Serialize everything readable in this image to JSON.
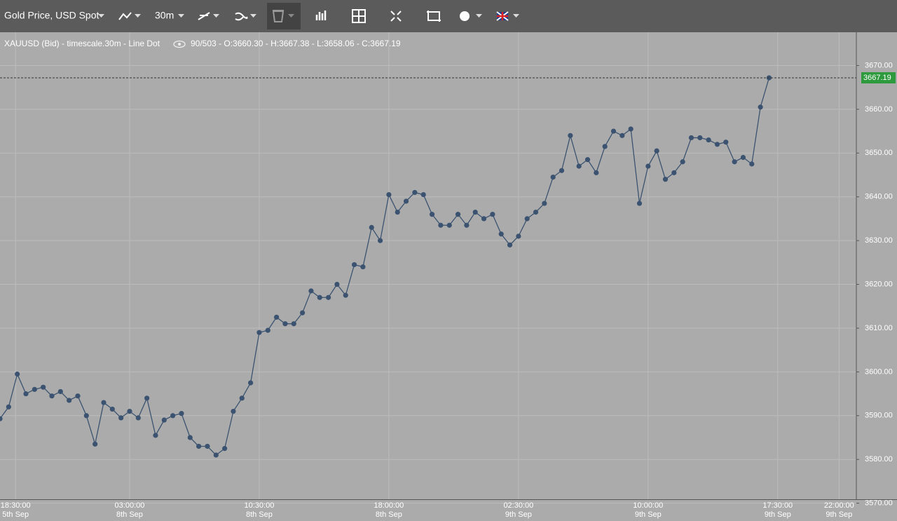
{
  "toolbar": {
    "instrument": "Gold Price, USD Spot",
    "timeframe": "30m"
  },
  "info": {
    "description": "XAUUSD (Bid) - timescale.30m - Line Dot",
    "stats": "90/503 - O:3660.30 - H:3667.38 - L:3658.06 - C:3667.19"
  },
  "chart_data": {
    "type": "line",
    "color": "#3b5370",
    "values": [
      3589.3,
      3592,
      3599.5,
      3595,
      3596,
      3596.5,
      3594.5,
      3595.5,
      3593.5,
      3594.5,
      3590,
      3583.5,
      3593,
      3591.5,
      3589.5,
      3591,
      3589.5,
      3594,
      3585.5,
      3589,
      3590,
      3590.5,
      3585,
      3583,
      3583,
      3581,
      3582.5,
      3591,
      3594,
      3597.5,
      3609,
      3609.5,
      3612.5,
      3611,
      3611,
      3613.5,
      3618.5,
      3617,
      3617,
      3620,
      3617.5,
      3624.5,
      3624,
      3633,
      3630,
      3640.5,
      3636.5,
      3639,
      3641,
      3640.5,
      3636,
      3633.5,
      3633.5,
      3636,
      3633.5,
      3636.5,
      3635,
      3636,
      3631.5,
      3629,
      3631,
      3635,
      3636.5,
      3638.5,
      3644.5,
      3646,
      3654,
      3647,
      3648.5,
      3645.5,
      3651.5,
      3655,
      3654,
      3655.5,
      3638.5,
      3647,
      3650.5,
      3644,
      3645.5,
      3648,
      3653.5,
      3653.5,
      3653,
      3652,
      3652.5,
      3648,
      3649,
      3647.5,
      3660.5,
      3667.19
    ],
    "last_price": 3667.19,
    "xlim": [
      0,
      99.1
    ],
    "xticks": [
      {
        "value": 1.8,
        "label": "18:30:00"
      },
      {
        "value": 15,
        "label": "03:00:00"
      },
      {
        "value": 30,
        "label": "10:30:00"
      },
      {
        "value": 45,
        "label": "18:00:00"
      },
      {
        "value": 60,
        "label": "02:30:00"
      },
      {
        "value": 75,
        "label": "10:00:00"
      },
      {
        "value": 90,
        "label": "17:30:00"
      },
      {
        "value": 97.1,
        "label": "22:00:00"
      }
    ],
    "xtick_dates": [
      "5th Sep",
      "8th Sep",
      "8th Sep",
      "8th Sep",
      "9th Sep",
      "9th Sep",
      "9th Sep",
      "9th Sep"
    ],
    "ylim": [
      3570.9,
      3677.6
    ],
    "yticks": [
      {
        "value": 3570,
        "label": "3570.00"
      },
      {
        "value": 3580,
        "label": "3580.00"
      },
      {
        "value": 3590,
        "label": "3590.00"
      },
      {
        "value": 3600,
        "label": "3600.00"
      },
      {
        "value": 3610,
        "label": "3610.00"
      },
      {
        "value": 3620,
        "label": "3620.00"
      },
      {
        "value": 3630,
        "label": "3630.00"
      },
      {
        "value": 3640,
        "label": "3640.00"
      },
      {
        "value": 3650,
        "label": "3650.00"
      },
      {
        "value": 3660,
        "label": "3660.00"
      },
      {
        "value": 3670,
        "label": "3670.00"
      }
    ],
    "grid": true
  }
}
